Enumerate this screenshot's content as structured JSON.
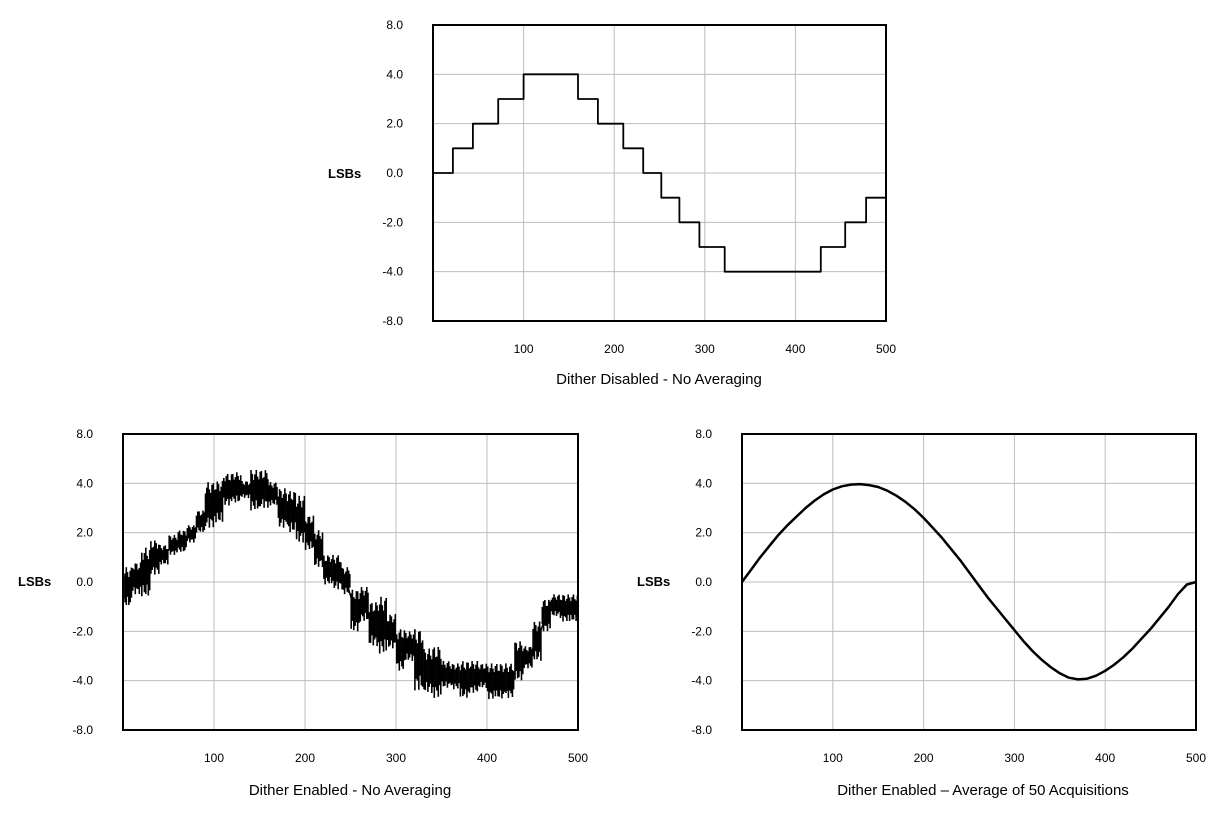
{
  "chart_data": [
    {
      "type": "line",
      "xlabel": "Dither Disabled - No Averaging",
      "ylabel": "LSBs",
      "xlim": [
        0,
        500
      ],
      "ylim": [
        -8,
        8
      ],
      "x_ticks": [
        "100",
        "200",
        "300",
        "400",
        "500"
      ],
      "y_ticks": [
        "8.0",
        "4.0",
        "2.0",
        "0.0",
        "-2.0",
        "-4.0",
        "-8.0"
      ],
      "y_tick_values": [
        8,
        4,
        2,
        0,
        -2,
        -4,
        -8
      ],
      "grid": true,
      "series": [
        {
          "style": "step",
          "x": [
            0,
            22,
            22,
            44,
            44,
            72,
            72,
            100,
            100,
            160,
            160,
            182,
            182,
            210,
            210,
            232,
            232,
            252,
            252,
            272,
            272,
            294,
            294,
            322,
            322,
            428,
            428,
            455,
            455,
            478,
            478,
            500
          ],
          "y": [
            0,
            0,
            1,
            1,
            2,
            2,
            3,
            3,
            4,
            4,
            3,
            3,
            2,
            2,
            1,
            1,
            0,
            0,
            -1,
            -1,
            -2,
            -2,
            -3,
            -3,
            -4,
            -4,
            -3,
            -3,
            -2,
            -2,
            -1,
            -1
          ]
        }
      ]
    },
    {
      "type": "line",
      "xlabel": "Dither Enabled - No Averaging",
      "ylabel": "LSBs",
      "xlim": [
        0,
        500
      ],
      "ylim": [
        -8,
        8
      ],
      "x_ticks": [
        "100",
        "200",
        "300",
        "400",
        "500"
      ],
      "y_ticks": [
        "8.0",
        "4.0",
        "2.0",
        "0.0",
        "-2.0",
        "-4.0",
        "-8.0"
      ],
      "y_tick_values": [
        8,
        4,
        2,
        0,
        -2,
        -4,
        -8
      ],
      "grid": true,
      "series": [
        {
          "style": "noisy-bands",
          "x": [
            5,
            15,
            25,
            35,
            45,
            55,
            65,
            75,
            85,
            95,
            105,
            115,
            125,
            135,
            145,
            155,
            165,
            175,
            185,
            195,
            205,
            215,
            225,
            235,
            245,
            255,
            265,
            275,
            285,
            295,
            305,
            315,
            325,
            335,
            345,
            355,
            365,
            375,
            385,
            395,
            405,
            415,
            425,
            435,
            445,
            455,
            465,
            475,
            485,
            495
          ],
          "ymin": [
            -1.0,
            -0.5,
            -0.6,
            0.3,
            0.7,
            1.1,
            1.2,
            1.6,
            2.0,
            2.2,
            2.4,
            3.1,
            3.2,
            3.4,
            2.9,
            3.0,
            3.1,
            2.2,
            2.0,
            1.6,
            1.3,
            0.6,
            -0.1,
            -0.3,
            -0.5,
            -2.0,
            -1.6,
            -2.6,
            -2.9,
            -2.7,
            -3.6,
            -3.2,
            -4.8,
            -5.0,
            -5.4,
            -4.6,
            -4.7,
            -5.4,
            -5.0,
            -4.6,
            -5.5,
            -5.5,
            -5.4,
            -4.0,
            -3.5,
            -3.2,
            -2.0,
            -1.4,
            -1.6,
            -1.6
          ],
          "ymax": [
            0.6,
            0.8,
            1.4,
            1.7,
            1.5,
            1.9,
            2.1,
            2.3,
            2.9,
            4.1,
            4.2,
            4.8,
            4.9,
            4.2,
            5.1,
            5.1,
            4.1,
            3.8,
            3.7,
            3.5,
            2.7,
            2.1,
            1.1,
            1.1,
            0.6,
            -0.3,
            -0.2,
            -0.8,
            -0.6,
            -1.3,
            -1.9,
            -2.0,
            -1.9,
            -2.7,
            -2.6,
            -3.2,
            -3.3,
            -3.2,
            -3.2,
            -3.3,
            -3.3,
            -3.3,
            -3.3,
            -2.4,
            -2.6,
            -1.6,
            -0.7,
            -0.5,
            -0.5,
            -0.5
          ]
        }
      ]
    },
    {
      "type": "line",
      "xlabel": "Dither Enabled – Average of 50 Acquisitions",
      "ylabel": "LSBs",
      "xlim": [
        0,
        500
      ],
      "ylim": [
        -8,
        8
      ],
      "x_ticks": [
        "100",
        "200",
        "300",
        "400",
        "500"
      ],
      "y_ticks": [
        "8.0",
        "4.0",
        "2.0",
        "0.0",
        "-2.0",
        "-4.0",
        "-8.0"
      ],
      "y_tick_values": [
        8,
        4,
        2,
        0,
        -2,
        -4,
        -8
      ],
      "grid": true,
      "series": [
        {
          "style": "smooth",
          "x": [
            0,
            10,
            20,
            30,
            40,
            50,
            60,
            70,
            80,
            90,
            100,
            110,
            120,
            130,
            140,
            150,
            160,
            170,
            180,
            190,
            200,
            210,
            220,
            230,
            240,
            250,
            260,
            270,
            280,
            290,
            300,
            310,
            320,
            330,
            340,
            350,
            360,
            370,
            380,
            390,
            400,
            410,
            420,
            430,
            440,
            450,
            460,
            470,
            480,
            490,
            500
          ],
          "y": [
            0.0,
            0.5,
            1.0,
            1.45,
            1.9,
            2.3,
            2.65,
            3.0,
            3.3,
            3.55,
            3.75,
            3.88,
            3.95,
            3.97,
            3.93,
            3.85,
            3.7,
            3.5,
            3.25,
            2.95,
            2.6,
            2.2,
            1.8,
            1.35,
            0.9,
            0.4,
            -0.1,
            -0.6,
            -1.05,
            -1.5,
            -1.95,
            -2.4,
            -2.8,
            -3.15,
            -3.45,
            -3.7,
            -3.88,
            -3.95,
            -3.92,
            -3.8,
            -3.6,
            -3.35,
            -3.05,
            -2.7,
            -2.3,
            -1.9,
            -1.45,
            -1.0,
            -0.5,
            -0.1,
            0.0
          ]
        }
      ]
    }
  ]
}
